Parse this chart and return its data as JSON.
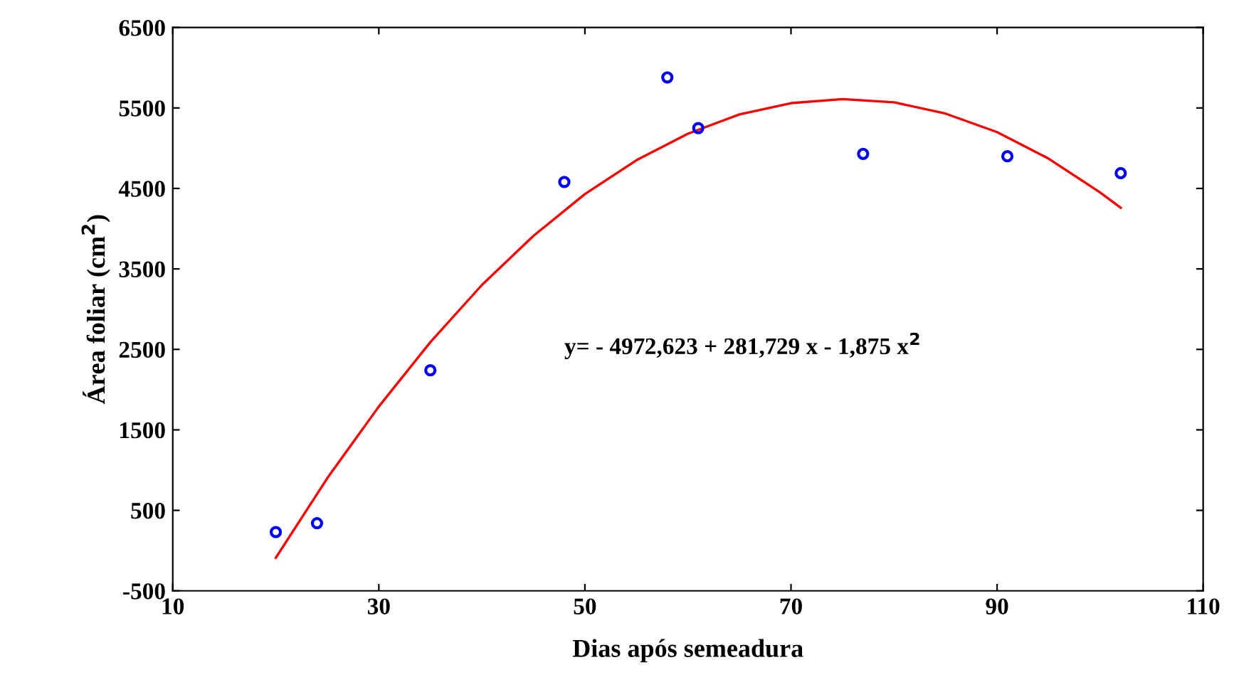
{
  "chart_data": {
    "type": "scatter",
    "xlabel": "Dias após semeadura",
    "ylabel": "Área foliar (cm$^{2}$)",
    "x": [
      20,
      24,
      35,
      48,
      58,
      61,
      77,
      91,
      102
    ],
    "xlim": [
      10,
      110
    ],
    "xticks": [
      10,
      30,
      50,
      70,
      90,
      110
    ],
    "ylim": [
      -500,
      6500
    ],
    "yticks": [
      -500,
      500,
      1500,
      2500,
      3500,
      4500,
      5500,
      6500
    ],
    "grid": false,
    "legend": false,
    "marker": "circle",
    "series": [
      {
        "color": "#0000ff",
        "values": [
          230,
          340,
          2240,
          4580,
          5880,
          5250,
          4930,
          4900,
          4690
        ]
      },
      {
        "type": "line",
        "color": "#ff0000",
        "marker": "none",
        "line_style": "solid",
        "x": [
          20,
          25,
          30,
          35,
          40,
          45,
          50,
          55,
          60,
          65,
          70,
          75,
          80,
          85,
          90,
          95,
          100,
          102
        ],
        "values": [
          -90,
          900,
          1790,
          2590,
          3300,
          3910,
          4430,
          4850,
          5180,
          5420,
          5560,
          5610,
          5570,
          5430,
          5200,
          4870,
          4450,
          4260
        ]
      }
    ],
    "annotations": [
      "y= - 4972,623 + 281,729 x - 1,875 x$^{2}$"
    ]
  }
}
